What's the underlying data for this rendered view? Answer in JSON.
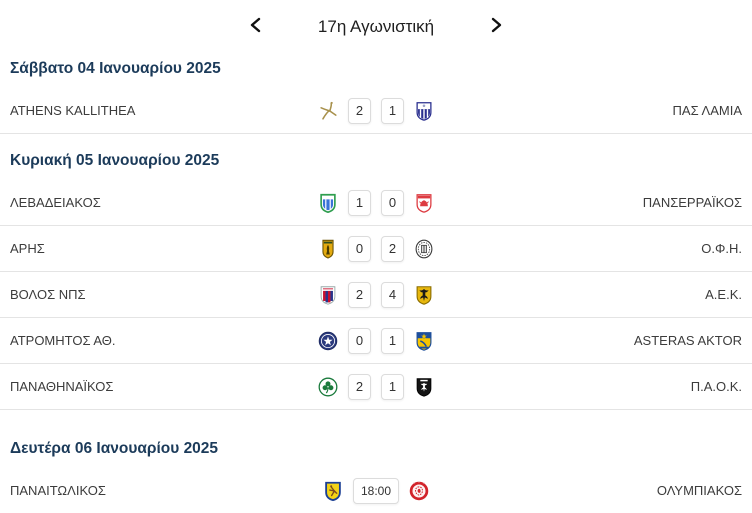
{
  "header": {
    "title": "17η Αγωνιστική",
    "prev_icon": "chevron-left",
    "next_icon": "chevron-right"
  },
  "colors": {
    "date_header_text": "#1c3b5a",
    "team_name_text": "#3c3c3c",
    "separator": "#e4e4e4",
    "score_box_border": "#dcdcdc",
    "background": "#ffffff"
  },
  "sections": [
    {
      "date": "Σάββατο 04 Ιανουαρίου 2025",
      "matches": [
        {
          "home": "ATHENS KALLITHEA",
          "away": "ΠΑΣ ΛΑΜΙΑ",
          "home_logo": "athens-kallithea-logo",
          "away_logo": "pas-lamia-logo",
          "home_score": "2",
          "away_score": "1",
          "status": "finished"
        }
      ]
    },
    {
      "date": "Κυριακή 05 Ιανουαρίου 2025",
      "matches": [
        {
          "home": "ΛΕΒΑΔΕΙΑΚΟΣ",
          "away": "ΠΑΝΣΕΡΡΑΪΚΟΣ",
          "home_logo": "levadiakos-logo",
          "away_logo": "panserraikos-logo",
          "home_score": "1",
          "away_score": "0",
          "status": "finished"
        },
        {
          "home": "ΑΡΗΣ",
          "away": "Ο.Φ.Η.",
          "home_logo": "aris-logo",
          "away_logo": "ofi-logo",
          "home_score": "0",
          "away_score": "2",
          "status": "finished"
        },
        {
          "home": "ΒΟΛΟΣ ΝΠΣ",
          "away": "Α.Ε.Κ.",
          "home_logo": "volos-nps-logo",
          "away_logo": "aek-logo",
          "home_score": "2",
          "away_score": "4",
          "status": "finished"
        },
        {
          "home": "ΑΤΡΟΜΗΤΟΣ ΑΘ.",
          "away": "ASTERAS AKTOR",
          "home_logo": "atromitos-logo",
          "away_logo": "asteras-aktor-logo",
          "home_score": "0",
          "away_score": "1",
          "status": "finished"
        },
        {
          "home": "ΠΑΝΑΘΗΝΑΪΚΟΣ",
          "away": "Π.Α.Ο.Κ.",
          "home_logo": "panathinaikos-logo",
          "away_logo": "paok-logo",
          "home_score": "2",
          "away_score": "1",
          "status": "finished"
        }
      ]
    },
    {
      "date": "Δευτέρα 06 Ιανουαρίου 2025",
      "matches": [
        {
          "home": "ΠΑΝΑΙΤΩΛΙΚΟΣ",
          "away": "ΟΛΥΜΠΙΑΚΟΣ",
          "home_logo": "panaitolikos-logo",
          "away_logo": "olympiakos-logo",
          "time": "18:00",
          "status": "scheduled"
        }
      ]
    }
  ]
}
